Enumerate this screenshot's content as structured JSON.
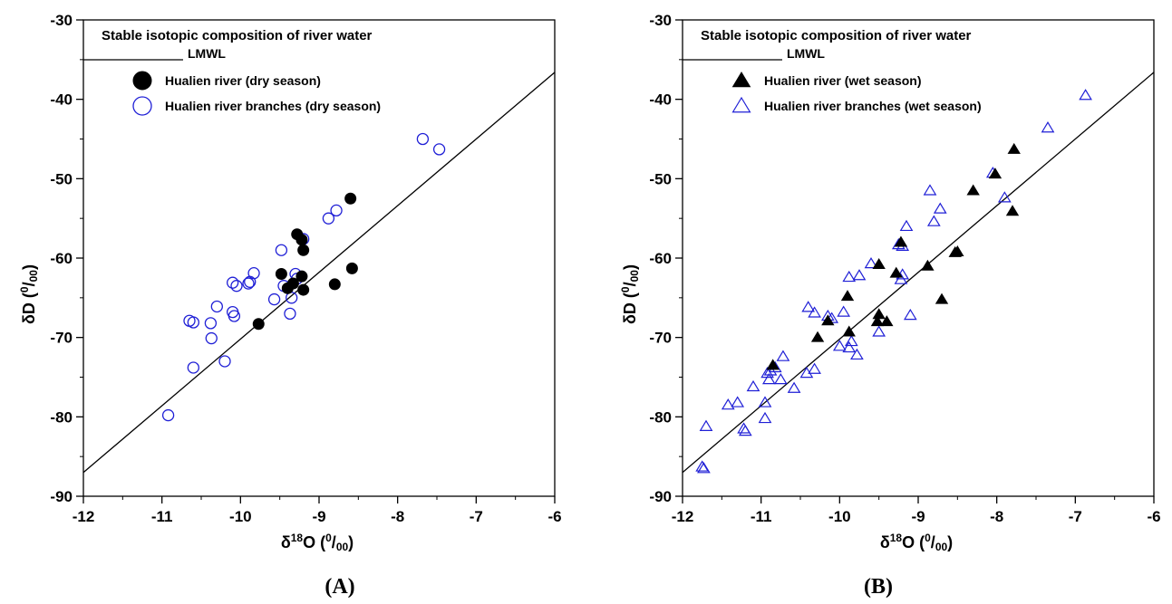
{
  "chart_data": [
    {
      "type": "scatter",
      "panel_label": "(A)",
      "legend_title": "Stable isotopic composition of river water",
      "xlabel": "δ18O (0/00)",
      "ylabel": "δD (0/00)",
      "xlim": [
        -12,
        -6
      ],
      "ylim": [
        -90,
        -30
      ],
      "x_ticks": [
        "-12",
        "-11",
        "-10",
        "-9",
        "-8",
        "-7",
        "-6"
      ],
      "y_ticks": [
        "-90",
        "-80",
        "-70",
        "-60",
        "-50",
        "-40",
        "-30"
      ],
      "legend_position": "top-left",
      "line": {
        "name": "LMWL",
        "x": [
          -12,
          -6
        ],
        "y": [
          -87,
          -36.6
        ]
      },
      "series": [
        {
          "name": "Hualien river (dry season)",
          "marker": "filled-circle",
          "color": "#000000",
          "points": [
            [
              -8.6,
              -52.5
            ],
            [
              -8.58,
              -61.3
            ],
            [
              -8.8,
              -63.3
            ],
            [
              -9.28,
              -57.0
            ],
            [
              -9.22,
              -57.7
            ],
            [
              -9.2,
              -59.0
            ],
            [
              -9.48,
              -62.0
            ],
            [
              -9.22,
              -62.3
            ],
            [
              -9.33,
              -63.2
            ],
            [
              -9.4,
              -63.8
            ],
            [
              -9.2,
              -64.0
            ],
            [
              -9.77,
              -68.3
            ]
          ]
        },
        {
          "name": "Hualien river branches (dry season)",
          "marker": "open-circle",
          "color": "#1f1fd6",
          "points": [
            [
              -7.68,
              -45.0
            ],
            [
              -7.47,
              -46.3
            ],
            [
              -8.78,
              -54.0
            ],
            [
              -8.88,
              -55.0
            ],
            [
              -9.2,
              -57.6
            ],
            [
              -9.48,
              -59.0
            ],
            [
              -9.3,
              -62.0
            ],
            [
              -9.28,
              -62.6
            ],
            [
              -9.45,
              -63.5
            ],
            [
              -9.35,
              -65.0
            ],
            [
              -9.57,
              -65.2
            ],
            [
              -9.37,
              -67.0
            ],
            [
              -9.83,
              -61.9
            ],
            [
              -9.88,
              -63.0
            ],
            [
              -9.9,
              -63.2
            ],
            [
              -10.05,
              -63.5
            ],
            [
              -10.1,
              -63.1
            ],
            [
              -10.3,
              -66.1
            ],
            [
              -10.1,
              -66.8
            ],
            [
              -10.08,
              -67.3
            ],
            [
              -10.38,
              -68.2
            ],
            [
              -10.6,
              -68.1
            ],
            [
              -10.65,
              -67.9
            ],
            [
              -10.37,
              -70.1
            ],
            [
              -10.2,
              -73.0
            ],
            [
              -10.6,
              -73.8
            ],
            [
              -10.92,
              -79.8
            ]
          ]
        }
      ]
    },
    {
      "type": "scatter",
      "panel_label": "(B)",
      "legend_title": "Stable isotopic composition of river water",
      "xlabel": "δ18O (0/00)",
      "ylabel": "δD (0/00)",
      "xlim": [
        -12,
        -6
      ],
      "ylim": [
        -90,
        -30
      ],
      "x_ticks": [
        "-12",
        "-11",
        "-10",
        "-9",
        "-8",
        "-7",
        "-6"
      ],
      "y_ticks": [
        "-90",
        "-80",
        "-70",
        "-60",
        "-50",
        "-40",
        "-30"
      ],
      "legend_position": "top-left",
      "line": {
        "name": "LMWL",
        "x": [
          -12,
          -6
        ],
        "y": [
          -87,
          -36.6
        ]
      },
      "series": [
        {
          "name": "Hualien river (wet season)",
          "marker": "filled-triangle",
          "color": "#000000",
          "points": [
            [
              -7.78,
              -46.3
            ],
            [
              -8.02,
              -49.4
            ],
            [
              -8.3,
              -51.5
            ],
            [
              -7.8,
              -54.1
            ],
            [
              -9.22,
              -58.0
            ],
            [
              -9.5,
              -60.8
            ],
            [
              -9.28,
              -61.9
            ],
            [
              -8.5,
              -59.2
            ],
            [
              -8.53,
              -59.3
            ],
            [
              -8.88,
              -61.0
            ],
            [
              -9.9,
              -64.8
            ],
            [
              -8.7,
              -65.2
            ],
            [
              -9.5,
              -67.1
            ],
            [
              -9.88,
              -69.3
            ],
            [
              -9.52,
              -68.0
            ],
            [
              -9.4,
              -68.0
            ],
            [
              -10.15,
              -67.9
            ],
            [
              -10.28,
              -70.0
            ],
            [
              -10.85,
              -73.5
            ]
          ]
        },
        {
          "name": "Hualien river branches (wet season)",
          "marker": "open-triangle",
          "color": "#1f1fd6",
          "points": [
            [
              -6.87,
              -39.5
            ],
            [
              -7.35,
              -43.6
            ],
            [
              -8.05,
              -49.3
            ],
            [
              -7.9,
              -52.4
            ],
            [
              -8.85,
              -51.5
            ],
            [
              -8.72,
              -53.8
            ],
            [
              -8.8,
              -55.4
            ],
            [
              -9.15,
              -56.0
            ],
            [
              -9.25,
              -58.3
            ],
            [
              -9.2,
              -58.5
            ],
            [
              -9.6,
              -60.7
            ],
            [
              -9.75,
              -62.2
            ],
            [
              -9.88,
              -62.4
            ],
            [
              -9.2,
              -62.1
            ],
            [
              -9.22,
              -62.7
            ],
            [
              -9.95,
              -66.8
            ],
            [
              -10.4,
              -66.2
            ],
            [
              -10.32,
              -66.9
            ],
            [
              -10.1,
              -67.6
            ],
            [
              -10.15,
              -67.3
            ],
            [
              -9.1,
              -67.2
            ],
            [
              -10.0,
              -71.1
            ],
            [
              -9.88,
              -71.3
            ],
            [
              -9.85,
              -70.5
            ],
            [
              -9.5,
              -69.3
            ],
            [
              -9.78,
              -72.2
            ],
            [
              -10.72,
              -72.4
            ],
            [
              -10.75,
              -75.3
            ],
            [
              -10.42,
              -74.5
            ],
            [
              -10.32,
              -74.0
            ],
            [
              -10.58,
              -76.4
            ],
            [
              -10.88,
              -74.2
            ],
            [
              -10.92,
              -74.5
            ],
            [
              -10.82,
              -73.8
            ],
            [
              -10.9,
              -75.3
            ],
            [
              -11.1,
              -76.2
            ],
            [
              -10.95,
              -78.2
            ],
            [
              -11.3,
              -78.2
            ],
            [
              -11.42,
              -78.5
            ],
            [
              -10.95,
              -80.2
            ],
            [
              -11.22,
              -81.5
            ],
            [
              -11.2,
              -81.8
            ],
            [
              -11.7,
              -81.2
            ],
            [
              -11.75,
              -86.3
            ],
            [
              -11.73,
              -86.5
            ]
          ]
        }
      ]
    }
  ]
}
